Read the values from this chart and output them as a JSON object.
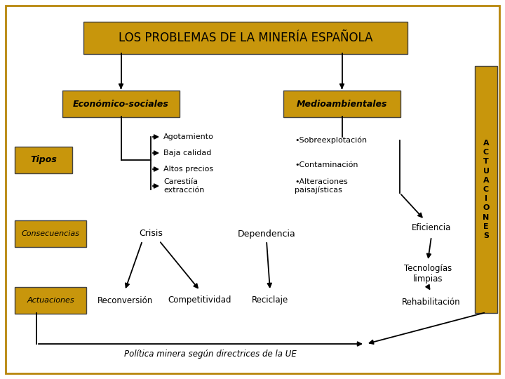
{
  "bg_color": "#ffffff",
  "border_color": "#b8860b",
  "box_fill": "#c8960c",
  "title": "LOS PROBLEMAS DE LA MINERÍA ESPAÑOLA",
  "econ_label": "Económico-sociales",
  "medio_label": "Medioambientales",
  "tipos_label": "Tipos",
  "cons_label": "Consecuencias",
  "act_label": "Actuaciones",
  "act_right_label": "A\nC\nT\nU\nA\nC\nI\nO\nN\nE\nS",
  "tipos_items": [
    "Agotamiento",
    "Baja calidad",
    "Altos precios",
    "Carestiía\nextracción"
  ],
  "crisis_label": "Crisis",
  "dependencia_label": "Dependencia",
  "reconversion_label": "Reconversión",
  "competitividad_label": "Competitividad",
  "reciclaje_label": "Reciclaje",
  "medio_items": [
    "•Sobreexplotación",
    "•Contaminación",
    "•Alteraciones\npaisajísticas"
  ],
  "eficiencia_label": "Eficiencia",
  "tecnologias_label": "Tecnologías\nlimpias",
  "rehabilitacion_label": "Rehabilitación",
  "bottom_text": "Política minera según directrices de la UE"
}
